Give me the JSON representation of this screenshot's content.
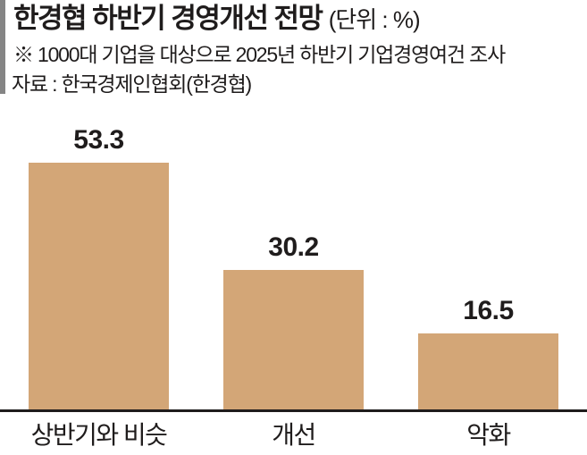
{
  "header": {
    "title": "한경협 하반기 경영개선 전망",
    "title_suffix": "(단위 : %)",
    "note": "※ 1000대 기업을 대상으로 2025년 하반기 기업경영여건 조사",
    "source": "자료 : 한국경제인협회(한경협)"
  },
  "colors": {
    "bar_fill": "#d3a677",
    "text": "#1f1c1c",
    "left_accent_bar": "#858585",
    "axis_line": "#1f1c1c"
  },
  "chart_data": {
    "type": "bar",
    "title": "한경협 하반기 경영개선 전망",
    "unit_label": "(단위 : %)",
    "categories": [
      "상반기와 비슷",
      "개선",
      "악화"
    ],
    "values": [
      53.3,
      30.2,
      16.5
    ],
    "value_labels": [
      "53.3",
      "30.2",
      "16.5"
    ],
    "xlabel": "",
    "ylabel": "",
    "ylim": [
      0,
      60
    ],
    "grid": false,
    "legend": false,
    "bar_color": "#d3a677",
    "annotations": [
      "※ 1000대 기업을 대상으로 2025년 하반기 기업경영여건 조사",
      "자료 : 한국경제인협회(한경협)"
    ]
  }
}
